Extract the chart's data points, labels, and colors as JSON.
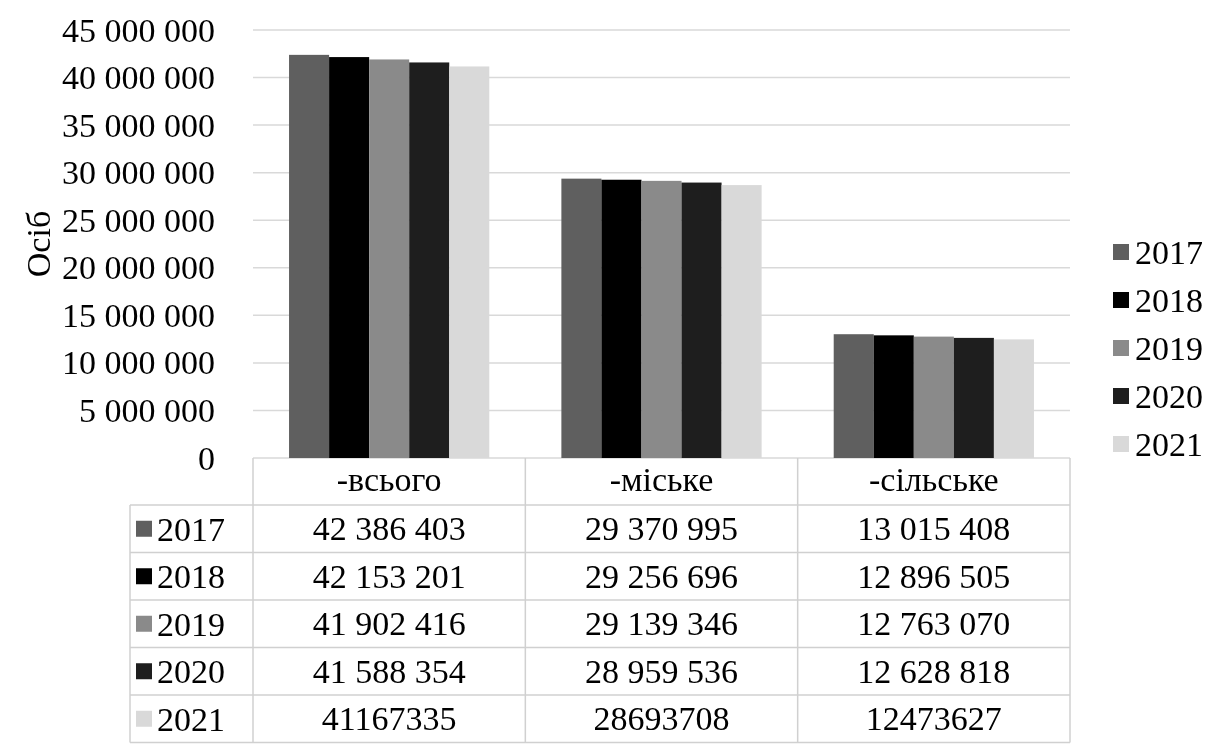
{
  "chart_data": {
    "type": "bar",
    "ylabel": "Осіб",
    "categories": [
      "-всього",
      "-міське",
      "-сільське"
    ],
    "series": [
      {
        "name": "2017",
        "color": "#5f5f5f",
        "values": [
          42386403,
          29370995,
          13015408
        ],
        "value_labels": [
          "42 386 403",
          "29 370 995",
          "13 015 408"
        ]
      },
      {
        "name": "2018",
        "color": "#000000",
        "values": [
          42153201,
          29256696,
          12896505
        ],
        "value_labels": [
          "42 153 201",
          "29 256 696",
          "12 896 505"
        ]
      },
      {
        "name": "2019",
        "color": "#8a8a8a",
        "values": [
          41902416,
          29139346,
          12763070
        ],
        "value_labels": [
          "41 902 416",
          "29 139 346",
          "12 763 070"
        ]
      },
      {
        "name": "2020",
        "color": "#1e1e1e",
        "values": [
          41588354,
          28959536,
          12628818
        ],
        "value_labels": [
          "41 588 354",
          "28 959 536",
          "12 628 818"
        ]
      },
      {
        "name": "2021",
        "color": "#d9d9d9",
        "values": [
          41167335,
          28693708,
          12473627
        ],
        "value_labels": [
          "41167335",
          "28693708",
          "12473627"
        ]
      }
    ],
    "ylim": [
      0,
      45000000
    ],
    "yticks": [
      0,
      {
        "value": 5000000,
        "label": "5 000 000"
      },
      {
        "value": 10000000,
        "label": "10 000 000"
      },
      {
        "value": 15000000,
        "label": "15 000 000"
      },
      {
        "value": 20000000,
        "label": "20 000 000"
      },
      {
        "value": 25000000,
        "label": "25 000 000"
      },
      {
        "value": 30000000,
        "label": "30 000 000"
      },
      {
        "value": 35000000,
        "label": "35 000 000"
      },
      {
        "value": 40000000,
        "label": "40 000 000"
      },
      {
        "value": 45000000,
        "label": "45 000 000"
      }
    ],
    "grid": "y",
    "legend": "right"
  }
}
